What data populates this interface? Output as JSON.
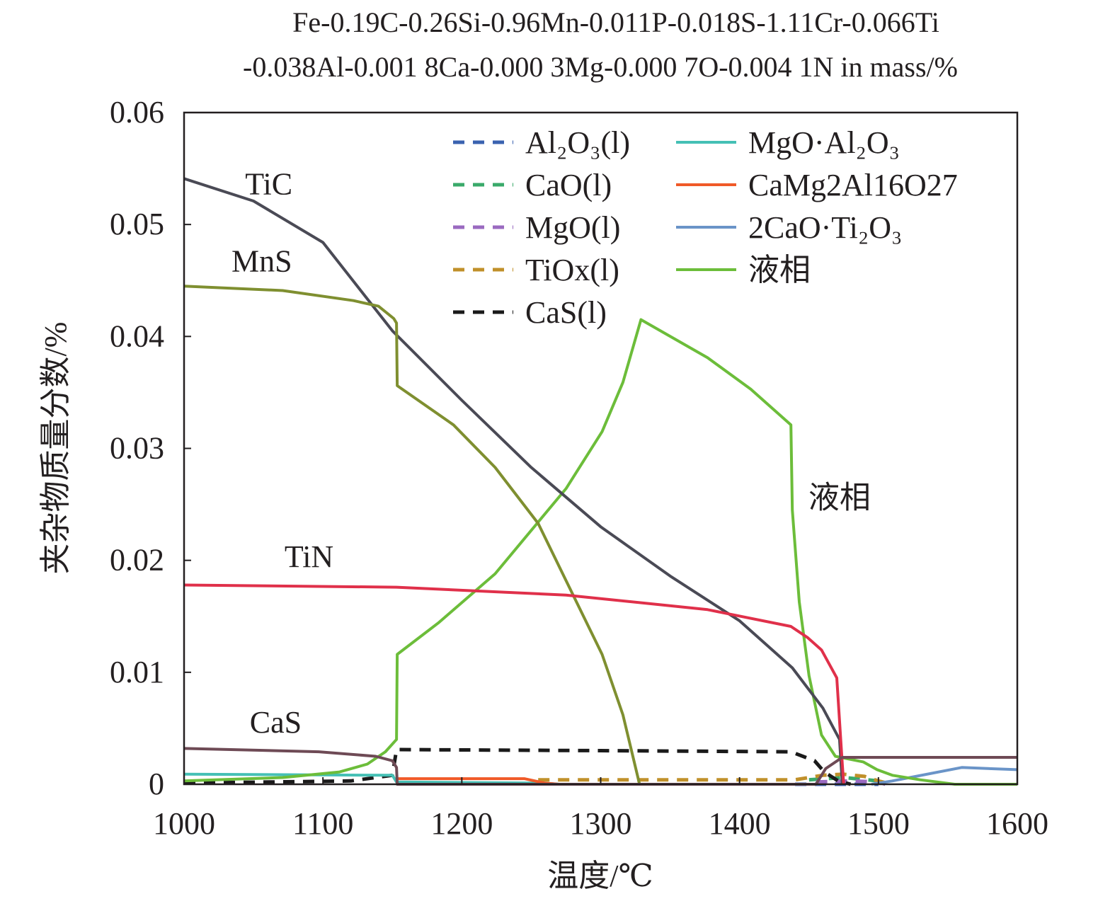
{
  "chart_data": {
    "type": "line",
    "title_lines": [
      "Fe-0.19C-0.26Si-0.96Mn-0.011P-0.018S-1.11Cr-0.066Ti",
      "-0.038Al-0.001 8Ca-0.000 3Mg-0.000 7O-0.004 1N in mass/%"
    ],
    "xlabel": "温度/℃",
    "ylabel": "夹杂物质量分数/%",
    "xlim": [
      1000,
      1600
    ],
    "ylim": [
      0,
      0.06
    ],
    "xticks": [
      1000,
      1100,
      1200,
      1300,
      1400,
      1500,
      1600
    ],
    "yticks": [
      0,
      0.01,
      0.02,
      0.03,
      0.04,
      0.05,
      0.06
    ],
    "ytick_labels": [
      "0",
      "0.01",
      "0.02",
      "0.03",
      "0.04",
      "0.05",
      "0.06"
    ],
    "grid": false,
    "legend_position": "top-right",
    "series": [
      {
        "name": "Al₂O₃(l)",
        "color": "#3a62b0",
        "dash": true,
        "legend": true,
        "points": [
          [
            1440,
            0
          ],
          [
            1500,
            0
          ]
        ]
      },
      {
        "name": "CaO(l)",
        "color": "#3aaa6a",
        "dash": true,
        "legend": true,
        "points": [
          [
            1450,
            0.0004
          ],
          [
            1475,
            0.0006
          ],
          [
            1500,
            0.0003
          ],
          [
            1505,
            0
          ]
        ]
      },
      {
        "name": "MgO(l)",
        "color": "#9a6ac0",
        "dash": true,
        "legend": true,
        "points": [
          [
            1455,
            0.0002
          ],
          [
            1480,
            0.0003
          ],
          [
            1500,
            0.0002
          ],
          [
            1505,
            0
          ]
        ]
      },
      {
        "name": "TiOx(l)",
        "color": "#c0902a",
        "dash": true,
        "legend": true,
        "points": [
          [
            1255,
            0.0004
          ],
          [
            1440,
            0.0004
          ],
          [
            1460,
            0.0008
          ],
          [
            1475,
            0.0009
          ],
          [
            1490,
            0.0007
          ],
          [
            1500,
            0.0003
          ],
          [
            1510,
            0
          ]
        ]
      },
      {
        "name": "CaS(l)",
        "color": "#1a1a1a",
        "dash": true,
        "legend": true,
        "points": [
          [
            1000,
            0.0001
          ],
          [
            1120,
            0.0003
          ],
          [
            1150,
            0.0008
          ],
          [
            1153,
            0.0031
          ],
          [
            1300,
            0.003
          ],
          [
            1437,
            0.0029
          ],
          [
            1454,
            0.0021
          ],
          [
            1461,
            0.0011
          ],
          [
            1471,
            0.0003
          ],
          [
            1480,
            0
          ]
        ]
      },
      {
        "name": "MgO·Al₂O₃",
        "color": "#45c0b5",
        "dash": false,
        "legend": true,
        "points": [
          [
            1000,
            0.0009
          ],
          [
            1150,
            0.0008
          ],
          [
            1153,
            0.0002
          ],
          [
            1260,
            0.0001
          ],
          [
            1270,
            0
          ]
        ]
      },
      {
        "name": "CaMg2Al16O27",
        "color": "#f05a28",
        "dash": false,
        "legend": true,
        "points": [
          [
            1153,
            0.0005
          ],
          [
            1245,
            0.0005
          ],
          [
            1260,
            0.0001
          ],
          [
            1270,
            0
          ]
        ]
      },
      {
        "name": "2CaO·Ti₂O₃",
        "color": "#6a94c8",
        "dash": false,
        "legend": true,
        "points": [
          [
            1495,
            0
          ],
          [
            1510,
            0.0003
          ],
          [
            1560,
            0.0015
          ],
          [
            1600,
            0.0013
          ]
        ]
      },
      {
        "name": "液相",
        "color": "#6cbd3a",
        "dash": false,
        "legend": true,
        "points": [
          [
            1000,
            0.0003
          ],
          [
            1071,
            0.0006
          ],
          [
            1112,
            0.0011
          ],
          [
            1132,
            0.0018
          ],
          [
            1145,
            0.0029
          ],
          [
            1153,
            0.004
          ],
          [
            1153.5,
            0.0116
          ],
          [
            1183,
            0.0144
          ],
          [
            1224,
            0.0188
          ],
          [
            1275,
            0.0264
          ],
          [
            1301,
            0.0315
          ],
          [
            1316,
            0.0359
          ],
          [
            1329,
            0.0415
          ],
          [
            1377,
            0.0381
          ],
          [
            1408,
            0.0353
          ],
          [
            1437,
            0.0321
          ],
          [
            1438,
            0.0245
          ],
          [
            1443,
            0.0163
          ],
          [
            1450,
            0.0097
          ],
          [
            1459,
            0.0044
          ],
          [
            1469,
            0.0025
          ],
          [
            1489,
            0.002
          ],
          [
            1499,
            0.0013
          ],
          [
            1510,
            0.0008
          ],
          [
            1530,
            0.0004
          ],
          [
            1555,
            0
          ],
          [
            1600,
            0
          ]
        ]
      },
      {
        "name": "TiC",
        "color": "#4a4a55",
        "dash": false,
        "legend": false,
        "points": [
          [
            1000,
            0.0541
          ],
          [
            1050,
            0.0521
          ],
          [
            1100,
            0.0484
          ],
          [
            1150,
            0.0405
          ],
          [
            1200,
            0.0343
          ],
          [
            1250,
            0.0283
          ],
          [
            1300,
            0.023
          ],
          [
            1350,
            0.0186
          ],
          [
            1400,
            0.0146
          ],
          [
            1438,
            0.0104
          ],
          [
            1460,
            0.0068
          ],
          [
            1472,
            0.004
          ],
          [
            1474,
            0
          ]
        ]
      },
      {
        "name": "MnS",
        "color": "#7f8f30",
        "dash": false,
        "legend": false,
        "points": [
          [
            1000,
            0.0445
          ],
          [
            1071,
            0.0441
          ],
          [
            1122,
            0.0432
          ],
          [
            1140,
            0.0427
          ],
          [
            1151,
            0.0416
          ],
          [
            1153,
            0.0412
          ],
          [
            1153.5,
            0.0356
          ],
          [
            1194,
            0.0321
          ],
          [
            1224,
            0.0283
          ],
          [
            1255,
            0.0233
          ],
          [
            1275,
            0.0182
          ],
          [
            1301,
            0.0116
          ],
          [
            1316,
            0.0062
          ],
          [
            1328,
            0
          ]
        ]
      },
      {
        "name": "TiN",
        "color": "#e0304a",
        "dash": false,
        "legend": false,
        "points": [
          [
            1000,
            0.0178
          ],
          [
            1153,
            0.0176
          ],
          [
            1275,
            0.0169
          ],
          [
            1377,
            0.0156
          ],
          [
            1437,
            0.0141
          ],
          [
            1449,
            0.0131
          ],
          [
            1459,
            0.012
          ],
          [
            1470,
            0.0095
          ],
          [
            1474,
            0.0018
          ],
          [
            1475,
            0
          ]
        ]
      },
      {
        "name": "CaS",
        "color": "#6e4a55",
        "dash": false,
        "legend": false,
        "points": [
          [
            1000,
            0.0032
          ],
          [
            1097,
            0.0029
          ],
          [
            1138,
            0.0025
          ],
          [
            1150,
            0.0021
          ],
          [
            1153,
            0.0015
          ],
          [
            1153.5,
            0
          ],
          [
            1455,
            0
          ],
          [
            1462,
            0.0014
          ],
          [
            1474,
            0.0024
          ],
          [
            1600,
            0.0024
          ]
        ]
      }
    ],
    "annotations": [
      {
        "text": "TiC",
        "at": [
          1061,
          0.0527
        ]
      },
      {
        "text": "MnS",
        "at": [
          1056,
          0.0458
        ]
      },
      {
        "text": "TiN",
        "at": [
          1090,
          0.0194
        ]
      },
      {
        "text": "CaS",
        "at": [
          1066,
          0.0046
        ]
      },
      {
        "text": "液相",
        "at": [
          1472,
          0.0247
        ]
      }
    ]
  }
}
